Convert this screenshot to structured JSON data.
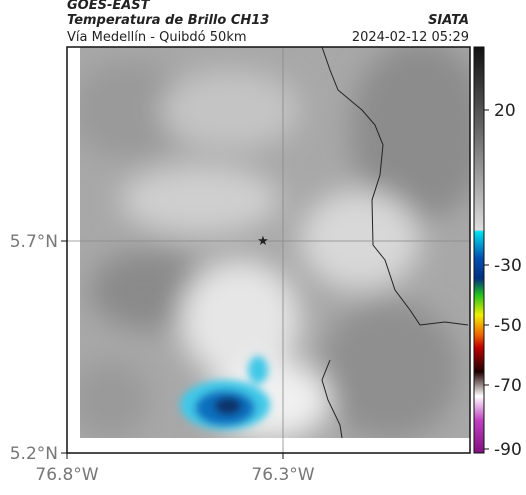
{
  "header": {
    "source": "GOES-EAST",
    "product": "Temperatura de Brillo CH13",
    "agency": "SIATA",
    "region": "Vía Medellín - Quibdó 50km",
    "datetime": "2024-02-12 05:29"
  },
  "map": {
    "lat_ticks": [
      "5.7°N",
      "5.2°N"
    ],
    "lon_ticks": [
      "76.8°W",
      "76.3°W"
    ]
  },
  "colorbar": {
    "ticks": [
      20,
      -30,
      -50,
      -70,
      -90
    ]
  }
}
